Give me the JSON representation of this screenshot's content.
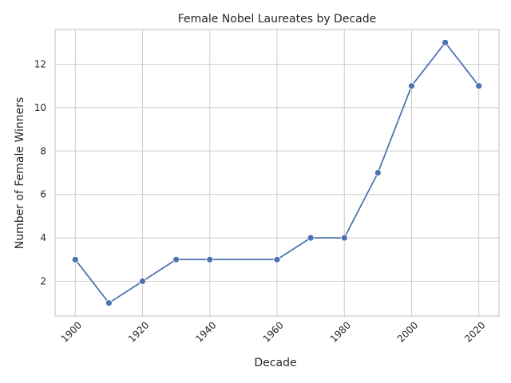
{
  "chart_data": {
    "type": "line",
    "title": "Female Nobel Laureates by Decade",
    "xlabel": "Decade",
    "ylabel": "Number of Female Winners",
    "x": [
      1900,
      1910,
      1920,
      1930,
      1940,
      1960,
      1970,
      1980,
      1990,
      2000,
      2010,
      2020
    ],
    "series": [
      {
        "values": [
          3,
          1,
          2,
          3,
          3,
          3,
          4,
          4,
          7,
          11,
          13,
          11
        ]
      }
    ],
    "xticks": [
      1900,
      1920,
      1940,
      1960,
      1980,
      2000,
      2020
    ],
    "yticks": [
      2,
      4,
      6,
      8,
      10,
      12
    ],
    "xlim": [
      1894,
      2026
    ],
    "ylim": [
      0.4,
      13.6
    ],
    "grid": true,
    "markers": true,
    "colors": {
      "series": "#4c72b0",
      "grid": "#cccccc",
      "text": "#262626"
    }
  }
}
